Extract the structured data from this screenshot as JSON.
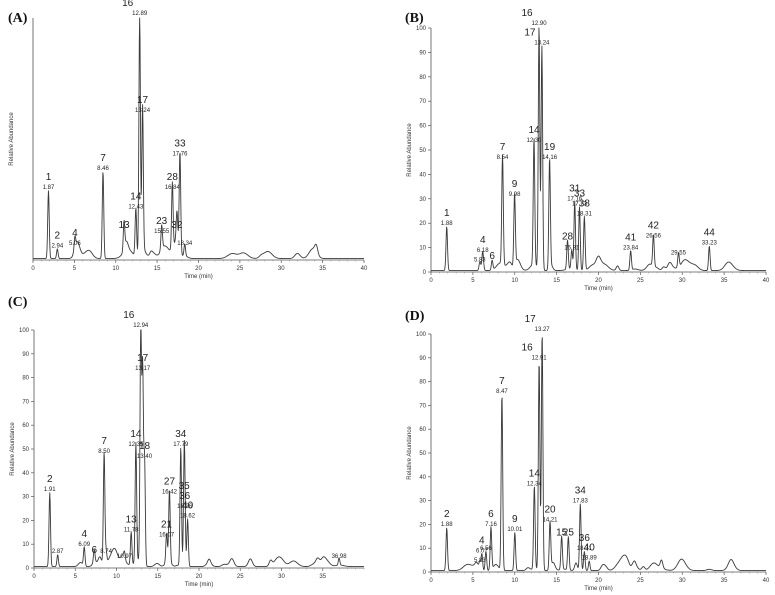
{
  "chart_data": [
    {
      "type": "line",
      "panel_label": "(A)",
      "xlabel": "Time (min)",
      "ylabel": "Relative Abundance",
      "xlim": [
        0,
        40
      ],
      "ylim": [
        0,
        100
      ],
      "xticks": [
        "0",
        "5",
        "10",
        "15",
        "20",
        "25",
        "30",
        "35",
        "40"
      ],
      "yticks": [],
      "peaks": [
        {
          "num": "1",
          "rt": "1.87",
          "x": 1.87,
          "y": 28
        },
        {
          "num": "2",
          "rt": "2.94",
          "x": 2.94,
          "y": 4
        },
        {
          "num": "4",
          "rt": "5.06",
          "x": 5.06,
          "y": 5
        },
        {
          "num": "7",
          "rt": "8.46",
          "x": 8.46,
          "y": 36
        },
        {
          "num": "13",
          "rt": "",
          "x": 11.0,
          "y": 12
        },
        {
          "num": "14",
          "rt": "12.43",
          "x": 12.43,
          "y": 20
        },
        {
          "num": "16",
          "rt": "12.89",
          "x": 12.89,
          "y": 100
        },
        {
          "num": "17",
          "rt": "13.24",
          "x": 13.24,
          "y": 60
        },
        {
          "num": "23",
          "rt": "15.55",
          "x": 15.55,
          "y": 10
        },
        {
          "num": "28",
          "rt": "16.84",
          "x": 16.84,
          "y": 28
        },
        {
          "num": "32",
          "rt": "",
          "x": 17.4,
          "y": 12
        },
        {
          "num": "33",
          "rt": "17.76",
          "x": 17.76,
          "y": 42
        },
        {
          "num": "",
          "rt": "18.34",
          "x": 18.34,
          "y": 5
        }
      ]
    },
    {
      "type": "line",
      "panel_label": "(B)",
      "xlabel": "Time (min)",
      "ylabel": "Relative Abundance",
      "xlim": [
        0,
        40
      ],
      "ylim": [
        0,
        100
      ],
      "xticks": [
        "0",
        "5",
        "10",
        "15",
        "20",
        "25",
        "30",
        "35",
        "40"
      ],
      "yticks": [
        "0",
        "10",
        "20",
        "30",
        "40",
        "50",
        "60",
        "70",
        "80",
        "90",
        "100"
      ],
      "peaks": [
        {
          "num": "1",
          "rt": "1.88",
          "x": 1.88,
          "y": 18
        },
        {
          "num": "",
          "rt": "5.83",
          "x": 5.83,
          "y": 3
        },
        {
          "num": "4",
          "rt": "6.18",
          "x": 6.18,
          "y": 7
        },
        {
          "num": "6",
          "rt": "",
          "x": 7.3,
          "y": 4
        },
        {
          "num": "7",
          "rt": "8.54",
          "x": 8.54,
          "y": 45
        },
        {
          "num": "9",
          "rt": "9.98",
          "x": 9.98,
          "y": 30
        },
        {
          "num": "14",
          "rt": "12.30",
          "x": 12.3,
          "y": 52
        },
        {
          "num": "16",
          "rt": "12.90",
          "x": 12.9,
          "y": 100
        },
        {
          "num": "17",
          "rt": "13.24",
          "x": 13.24,
          "y": 92
        },
        {
          "num": "19",
          "rt": "14.16",
          "x": 14.16,
          "y": 45
        },
        {
          "num": "",
          "rt": "16.81",
          "x": 16.81,
          "y": 8
        },
        {
          "num": "28",
          "rt": "",
          "x": 16.3,
          "y": 12
        },
        {
          "num": "31",
          "rt": "17.16",
          "x": 17.16,
          "y": 28
        },
        {
          "num": "33",
          "rt": "17.73",
          "x": 17.73,
          "y": 26
        },
        {
          "num": "38",
          "rt": "18.31",
          "x": 18.31,
          "y": 22
        },
        {
          "num": "41",
          "rt": "23.84",
          "x": 23.84,
          "y": 8
        },
        {
          "num": "42",
          "rt": "26.56",
          "x": 26.56,
          "y": 13
        },
        {
          "num": "",
          "rt": "29.55",
          "x": 29.55,
          "y": 6
        },
        {
          "num": "44",
          "rt": "33.23",
          "x": 33.23,
          "y": 10
        }
      ]
    },
    {
      "type": "line",
      "panel_label": "(C)",
      "xlabel": "Time (min)",
      "ylabel": "Relative Abundance",
      "xlim": [
        0,
        40
      ],
      "ylim": [
        0,
        100
      ],
      "xticks": [
        "0",
        "5",
        "10",
        "15",
        "20",
        "25",
        "30",
        "35"
      ],
      "yticks": [
        "0",
        "10",
        "20",
        "30",
        "40",
        "50",
        "60",
        "70",
        "80",
        "90",
        "100"
      ],
      "peaks": [
        {
          "num": "2",
          "rt": "1.91",
          "x": 1.91,
          "y": 31
        },
        {
          "num": "",
          "rt": "2.87",
          "x": 2.87,
          "y": 5
        },
        {
          "num": "4",
          "rt": "6.09",
          "x": 6.09,
          "y": 8
        },
        {
          "num": "6",
          "rt": "",
          "x": 7.3,
          "y": 5
        },
        {
          "num": "7",
          "rt": "8.50",
          "x": 8.5,
          "y": 47
        },
        {
          "num": "",
          "rt": "8.74",
          "x": 8.74,
          "y": 5
        },
        {
          "num": "",
          "rt": "10.97",
          "x": 10.97,
          "y": 3
        },
        {
          "num": "13",
          "rt": "11.78",
          "x": 11.78,
          "y": 14
        },
        {
          "num": "14",
          "rt": "12.35",
          "x": 12.35,
          "y": 50
        },
        {
          "num": "16",
          "rt": "12.94",
          "x": 12.94,
          "y": 100
        },
        {
          "num": "17",
          "rt": "13.17",
          "x": 13.17,
          "y": 82
        },
        {
          "num": "18",
          "rt": "13.40",
          "x": 13.4,
          "y": 45
        },
        {
          "num": "21",
          "rt": "16.07",
          "x": 16.07,
          "y": 12
        },
        {
          "num": "27",
          "rt": "16.42",
          "x": 16.42,
          "y": 30
        },
        {
          "num": "34",
          "rt": "17.79",
          "x": 17.79,
          "y": 50
        },
        {
          "num": "35",
          "rt": "",
          "x": 18.2,
          "y": 32
        },
        {
          "num": "36",
          "rt": "18.26",
          "x": 18.26,
          "y": 24
        },
        {
          "num": "40",
          "rt": "18.62",
          "x": 18.62,
          "y": 20
        },
        {
          "num": "",
          "rt": "36.98",
          "x": 36.98,
          "y": 3
        }
      ]
    },
    {
      "type": "line",
      "panel_label": "(D)",
      "xlabel": "Time (min)",
      "ylabel": "Relative Abundance",
      "xlim": [
        0,
        40
      ],
      "ylim": [
        0,
        100
      ],
      "xticks": [
        "0",
        "5",
        "10",
        "15",
        "20",
        "25",
        "30",
        "35",
        "40"
      ],
      "yticks": [
        "0",
        "10",
        "20",
        "30",
        "40",
        "50",
        "60",
        "70",
        "80",
        "90",
        "100"
      ],
      "peaks": [
        {
          "num": "2",
          "rt": "1.88",
          "x": 1.88,
          "y": 18
        },
        {
          "num": "",
          "rt": "5.83",
          "x": 5.83,
          "y": 3
        },
        {
          "num": "4",
          "rt": "6.07",
          "x": 6.07,
          "y": 7
        },
        {
          "num": "",
          "rt": "6.56",
          "x": 6.56,
          "y": 8
        },
        {
          "num": "6",
          "rt": "7.16",
          "x": 7.16,
          "y": 18
        },
        {
          "num": "7",
          "rt": "8.47",
          "x": 8.47,
          "y": 74
        },
        {
          "num": "9",
          "rt": "10.01",
          "x": 10.01,
          "y": 16
        },
        {
          "num": "14",
          "rt": "12.34",
          "x": 12.34,
          "y": 35
        },
        {
          "num": "16",
          "rt": "12.91",
          "x": 12.91,
          "y": 88
        },
        {
          "num": "17",
          "rt": "13.27",
          "x": 13.27,
          "y": 100
        },
        {
          "num": "15",
          "rt": "",
          "x": 15.6,
          "y": 14
        },
        {
          "num": "20",
          "rt": "14.21",
          "x": 14.21,
          "y": 20
        },
        {
          "num": "25",
          "rt": "",
          "x": 16.4,
          "y": 14
        },
        {
          "num": "34",
          "rt": "17.83",
          "x": 17.83,
          "y": 28
        },
        {
          "num": "36",
          "rt": "18.31",
          "x": 18.31,
          "y": 8
        },
        {
          "num": "40",
          "rt": "18.89",
          "x": 18.89,
          "y": 4
        }
      ]
    }
  ]
}
